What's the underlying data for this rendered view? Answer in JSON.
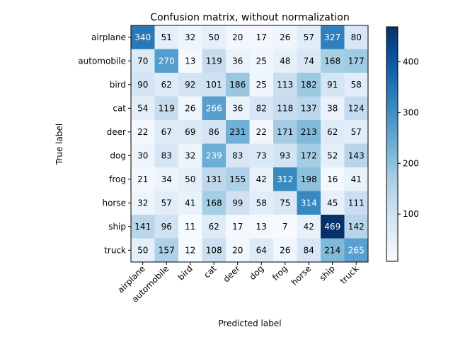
{
  "chart_data": {
    "type": "heatmap",
    "title": "Confusion matrix, without normalization",
    "xlabel": "Predicted label",
    "ylabel": "True label",
    "x_categories": [
      "airplane",
      "automobile",
      "bird",
      "cat",
      "deer",
      "dog",
      "frog",
      "horse",
      "ship",
      "truck"
    ],
    "y_categories": [
      "airplane",
      "automobile",
      "bird",
      "cat",
      "deer",
      "dog",
      "frog",
      "horse",
      "ship",
      "truck"
    ],
    "values": [
      [
        340,
        51,
        32,
        50,
        20,
        17,
        26,
        57,
        327,
        80
      ],
      [
        70,
        270,
        13,
        119,
        36,
        25,
        48,
        74,
        168,
        177
      ],
      [
        90,
        62,
        92,
        101,
        186,
        25,
        113,
        182,
        91,
        58
      ],
      [
        54,
        119,
        26,
        266,
        36,
        82,
        118,
        137,
        38,
        124
      ],
      [
        22,
        67,
        69,
        86,
        231,
        22,
        171,
        213,
        62,
        57
      ],
      [
        30,
        83,
        32,
        239,
        83,
        73,
        93,
        172,
        52,
        143
      ],
      [
        21,
        34,
        50,
        131,
        155,
        42,
        312,
        198,
        16,
        41
      ],
      [
        32,
        57,
        41,
        168,
        99,
        58,
        75,
        314,
        45,
        111
      ],
      [
        141,
        96,
        11,
        62,
        17,
        13,
        7,
        42,
        469,
        142
      ],
      [
        50,
        157,
        12,
        108,
        20,
        64,
        26,
        84,
        214,
        265
      ]
    ],
    "colormap": "Blues",
    "colormap_colors": [
      "#f7fbff",
      "#deebf7",
      "#c6dbef",
      "#9ecae1",
      "#6baed6",
      "#4292c6",
      "#2171b5",
      "#08519c",
      "#08306b"
    ],
    "value_range": [
      7,
      469
    ],
    "colorbar_ticks": [
      100,
      200,
      300,
      400
    ],
    "text_color_light": "#ffffff",
    "text_color_dark": "#000000",
    "xtick_rotation_deg": 45
  }
}
